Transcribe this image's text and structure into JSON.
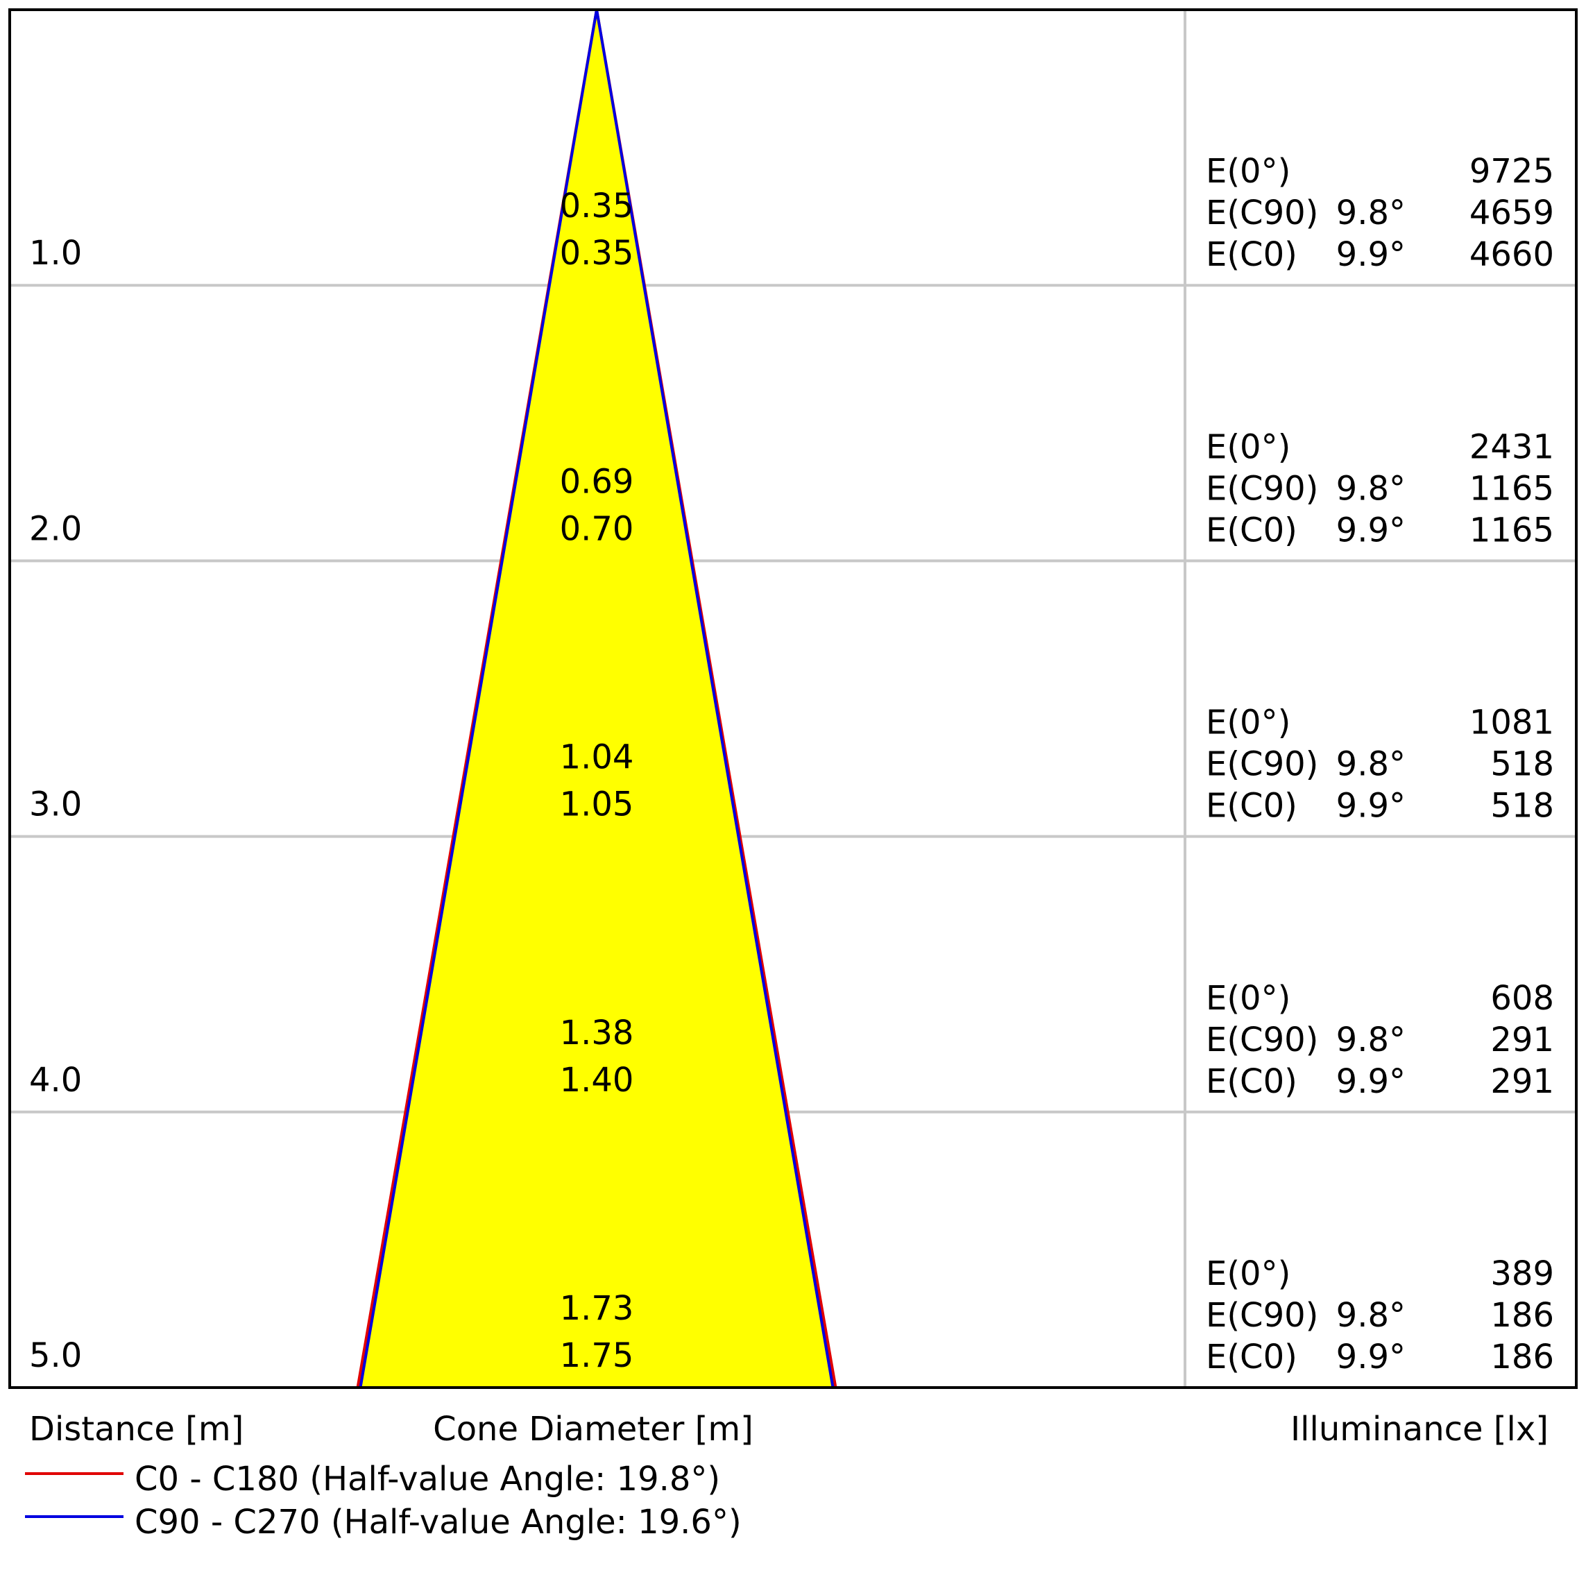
{
  "chart_data": {
    "type": "cone-diagram",
    "rows": [
      {
        "distance": "1.0",
        "diameter_c90": "0.35",
        "diameter_c0": "0.35",
        "e0_label": "E(0°)",
        "e0_value": "9725",
        "ec90_label": "E(C90)",
        "ec90_angle": "9.8°",
        "ec90_value": "4659",
        "ec0_label": "E(C0)",
        "ec0_angle": "9.9°",
        "ec0_value": "4660"
      },
      {
        "distance": "2.0",
        "diameter_c90": "0.69",
        "diameter_c0": "0.70",
        "e0_label": "E(0°)",
        "e0_value": "2431",
        "ec90_label": "E(C90)",
        "ec90_angle": "9.8°",
        "ec90_value": "1165",
        "ec0_label": "E(C0)",
        "ec0_angle": "9.9°",
        "ec0_value": "1165"
      },
      {
        "distance": "3.0",
        "diameter_c90": "1.04",
        "diameter_c0": "1.05",
        "e0_label": "E(0°)",
        "e0_value": "1081",
        "ec90_label": "E(C90)",
        "ec90_angle": "9.8°",
        "ec90_value": "518",
        "ec0_label": "E(C0)",
        "ec0_angle": "9.9°",
        "ec0_value": "518"
      },
      {
        "distance": "4.0",
        "diameter_c90": "1.38",
        "diameter_c0": "1.40",
        "e0_label": "E(0°)",
        "e0_value": "608",
        "ec90_label": "E(C90)",
        "ec90_angle": "9.8°",
        "ec90_value": "291",
        "ec0_label": "E(C0)",
        "ec0_angle": "9.9°",
        "ec0_value": "291"
      },
      {
        "distance": "5.0",
        "diameter_c90": "1.73",
        "diameter_c0": "1.75",
        "e0_label": "E(0°)",
        "e0_value": "389",
        "ec90_label": "E(C90)",
        "ec90_angle": "9.8°",
        "ec90_value": "186",
        "ec0_label": "E(C0)",
        "ec0_angle": "9.9°",
        "ec0_value": "186"
      }
    ],
    "max_distance": 5.0,
    "max_diameter": 1.75,
    "axis_labels": {
      "distance": "Distance [m]",
      "cone_diameter": "Cone Diameter [m]",
      "illuminance": "Illuminance [lx]"
    },
    "legend": [
      {
        "label": "C0 - C180 (Half-value Angle: 19.8°)",
        "color": "#e00000",
        "diameter_at_max": 1.75
      },
      {
        "label": "C90 - C270 (Half-value Angle: 19.6°)",
        "color": "#0000e0",
        "diameter_at_max": 1.73
      }
    ],
    "fill_color": "#ffff00",
    "grid": true
  }
}
